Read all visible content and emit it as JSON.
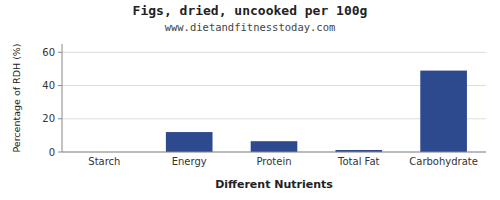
{
  "chart_data": {
    "type": "bar",
    "title": "Figs, dried, uncooked per 100g",
    "subtitle": "www.dietandfitnesstoday.com",
    "xlabel": "Different Nutrients",
    "ylabel": "Percentage of RDH (%)",
    "categories": [
      "Starch",
      "Energy",
      "Protein",
      "Total Fat",
      "Carbohydrate"
    ],
    "values": [
      0,
      12,
      6.5,
      1.2,
      49
    ],
    "color": "#2e4a8e",
    "ylim": [
      0,
      65
    ],
    "yticks": [
      0,
      20,
      40,
      60
    ],
    "grid": true
  }
}
